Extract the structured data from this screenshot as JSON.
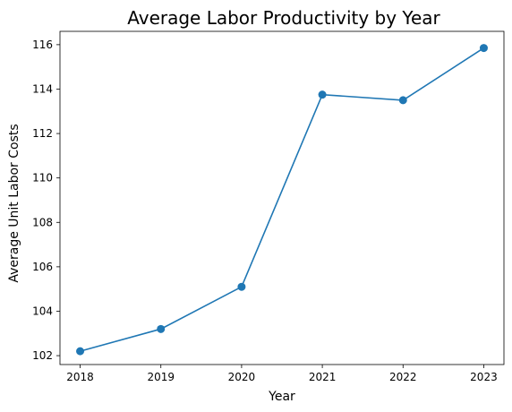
{
  "chart_data": {
    "type": "line",
    "title": "Average Labor Productivity by Year",
    "xlabel": "Year",
    "ylabel": "Average Unit Labor Costs",
    "x": [
      2018,
      2019,
      2020,
      2021,
      2022,
      2023
    ],
    "xticks": [
      "2018",
      "2019",
      "2020",
      "2021",
      "2022",
      "2023"
    ],
    "xlim": [
      2017.75,
      2023.25
    ],
    "ylim": [
      101.6,
      116.6
    ],
    "yticks": [
      102,
      104,
      106,
      108,
      110,
      112,
      114,
      116
    ],
    "series": [
      {
        "values": [
          102.2,
          103.2,
          105.1,
          113.75,
          113.5,
          115.85
        ],
        "color": "#1f77b4",
        "marker": "circle"
      }
    ],
    "grid": false,
    "legend": "none"
  }
}
